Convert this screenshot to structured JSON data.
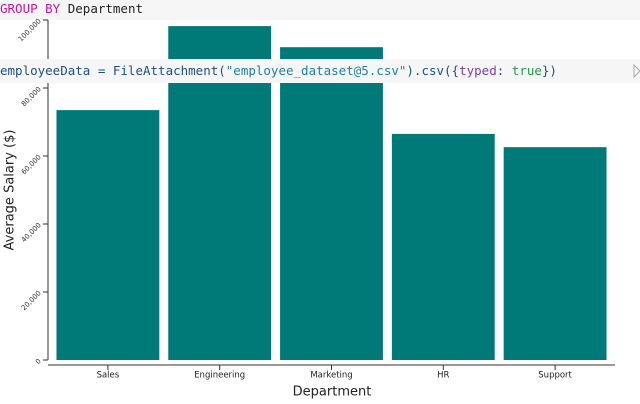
{
  "code": [
    {
      "tokens": [
        {
          "text": "GROUP BY",
          "color": "#c8179b"
        },
        {
          "text": " Department",
          "color": "#222222"
        }
      ]
    },
    {
      "tokens": [
        {
          "text": "employeeData = FileAttachment(",
          "color": "#1f4f8a"
        },
        {
          "text": "\"employee_dataset@5.csv\"",
          "color": "#1e7fb0"
        },
        {
          "text": ").csv({",
          "color": "#1f4f8a"
        },
        {
          "text": "typed",
          "color": "#7a3fb0"
        },
        {
          "text": ": ",
          "color": "#1f4f8a"
        },
        {
          "text": "true",
          "color": "#1f9a4a"
        },
        {
          "text": "})",
          "color": "#1f4f8a"
        }
      ]
    }
  ],
  "chart_data": {
    "type": "bar",
    "x_label": "Department",
    "y_label": "Average Salary ($)",
    "categories": [
      "Sales",
      "Engineering",
      "Marketing",
      "HR",
      "Support"
    ],
    "values": [
      73500,
      98200,
      92000,
      66500,
      62600
    ],
    "color": "#007a78",
    "ylim": [
      0,
      100000
    ],
    "yticks": [
      0,
      {
        "value": 20000,
        "label": "20,000"
      },
      {
        "value": 40000,
        "label": "40,000"
      },
      {
        "value": 60000,
        "label": "60,000"
      },
      {
        "value": 80000,
        "label": "80,000"
      },
      {
        "value": 100000,
        "label": "100,000"
      }
    ]
  }
}
